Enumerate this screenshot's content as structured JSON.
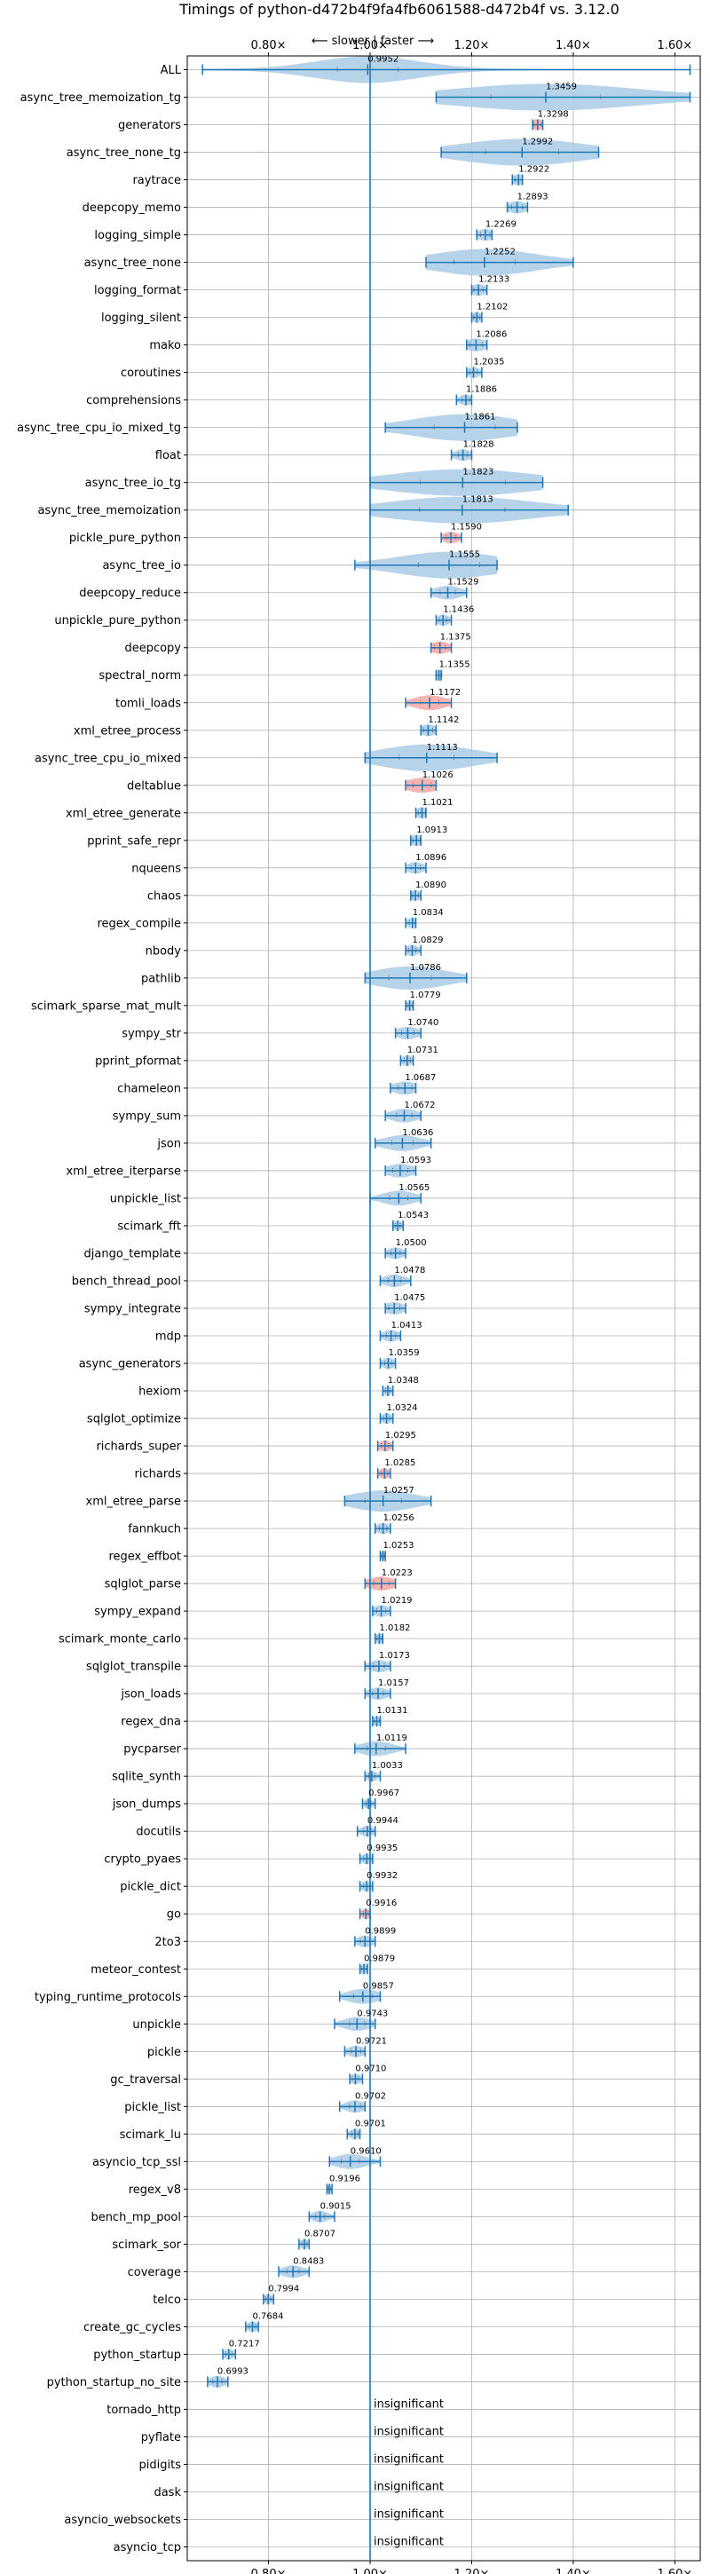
{
  "chart_data": {
    "type": "violin",
    "title": "Timings of python-d472b4f9fa4fb6061588-d472b4f vs. 3.12.0",
    "direction_note": "⟵ slower | faster ⟶",
    "xlim": [
      0.64,
      1.65
    ],
    "reference_x": 1.0,
    "x_ticks": [
      "0.80×",
      "1.00×",
      "1.20×",
      "1.40×",
      "1.60×"
    ],
    "x_tick_values": [
      0.8,
      1.0,
      1.2,
      1.4,
      1.6
    ],
    "grid": true,
    "insignificant_text": "insignificant",
    "colors": {
      "violin": "#a9cbe6",
      "violin_highlight": "#f4a6a6",
      "line": "#1f77b4",
      "grid": "#b0b0b0"
    },
    "categories": [
      {
        "name": "ALL",
        "value": 0.9952,
        "label": "0.9952",
        "lo": 0.67,
        "hi": 1.63,
        "spread": 0.1,
        "flag": false
      },
      {
        "name": "async_tree_memoization_tg",
        "value": 1.3459,
        "label": "1.3459",
        "lo": 1.13,
        "hi": 1.63,
        "spread": 0.18,
        "flag": false
      },
      {
        "name": "generators",
        "value": 1.3298,
        "label": "1.3298",
        "lo": 1.32,
        "hi": 1.34,
        "spread": 0.012,
        "flag": true
      },
      {
        "name": "async_tree_none_tg",
        "value": 1.2992,
        "label": "1.2992",
        "lo": 1.14,
        "hi": 1.45,
        "spread": 0.12,
        "flag": false
      },
      {
        "name": "raytrace",
        "value": 1.2922,
        "label": "1.2922",
        "lo": 1.28,
        "hi": 1.3,
        "spread": 0.012,
        "flag": false
      },
      {
        "name": "deepcopy_memo",
        "value": 1.2893,
        "label": "1.2893",
        "lo": 1.27,
        "hi": 1.31,
        "spread": 0.018,
        "flag": false
      },
      {
        "name": "logging_simple",
        "value": 1.2269,
        "label": "1.2269",
        "lo": 1.21,
        "hi": 1.24,
        "spread": 0.015,
        "flag": false
      },
      {
        "name": "async_tree_none",
        "value": 1.2252,
        "label": "1.2252",
        "lo": 1.11,
        "hi": 1.4,
        "spread": 0.1,
        "flag": false
      },
      {
        "name": "logging_format",
        "value": 1.2133,
        "label": "1.2133",
        "lo": 1.2,
        "hi": 1.23,
        "spread": 0.015,
        "flag": false
      },
      {
        "name": "logging_silent",
        "value": 1.2102,
        "label": "1.2102",
        "lo": 1.2,
        "hi": 1.22,
        "spread": 0.01,
        "flag": false
      },
      {
        "name": "mako",
        "value": 1.2086,
        "label": "1.2086",
        "lo": 1.19,
        "hi": 1.23,
        "spread": 0.02,
        "flag": false
      },
      {
        "name": "coroutines",
        "value": 1.2035,
        "label": "1.2035",
        "lo": 1.19,
        "hi": 1.22,
        "spread": 0.012,
        "flag": false
      },
      {
        "name": "comprehensions",
        "value": 1.1886,
        "label": "1.1886",
        "lo": 1.17,
        "hi": 1.2,
        "spread": 0.012,
        "flag": false
      },
      {
        "name": "async_tree_cpu_io_mixed_tg",
        "value": 1.1861,
        "label": "1.1861",
        "lo": 1.03,
        "hi": 1.29,
        "spread": 0.1,
        "flag": false
      },
      {
        "name": "float",
        "value": 1.1828,
        "label": "1.1828",
        "lo": 1.16,
        "hi": 1.2,
        "spread": 0.015,
        "flag": false
      },
      {
        "name": "async_tree_io_tg",
        "value": 1.1823,
        "label": "1.1823",
        "lo": 1.0,
        "hi": 1.34,
        "spread": 0.14,
        "flag": false
      },
      {
        "name": "async_tree_memoization",
        "value": 1.1813,
        "label": "1.1813",
        "lo": 1.0,
        "hi": 1.39,
        "spread": 0.14,
        "flag": false
      },
      {
        "name": "pickle_pure_python",
        "value": 1.159,
        "label": "1.1590",
        "lo": 1.14,
        "hi": 1.18,
        "spread": 0.015,
        "flag": true
      },
      {
        "name": "async_tree_io",
        "value": 1.1555,
        "label": "1.1555",
        "lo": 0.97,
        "hi": 1.25,
        "spread": 0.1,
        "flag": false
      },
      {
        "name": "deepcopy_reduce",
        "value": 1.1529,
        "label": "1.1529",
        "lo": 1.12,
        "hi": 1.19,
        "spread": 0.025,
        "flag": false
      },
      {
        "name": "unpickle_pure_python",
        "value": 1.1436,
        "label": "1.1436",
        "lo": 1.13,
        "hi": 1.16,
        "spread": 0.012,
        "flag": false
      },
      {
        "name": "deepcopy",
        "value": 1.1375,
        "label": "1.1375",
        "lo": 1.12,
        "hi": 1.16,
        "spread": 0.018,
        "flag": true
      },
      {
        "name": "spectral_norm",
        "value": 1.1355,
        "label": "1.1355",
        "lo": 1.13,
        "hi": 1.14,
        "spread": 0.01,
        "flag": false
      },
      {
        "name": "tomli_loads",
        "value": 1.1172,
        "label": "1.1172",
        "lo": 1.07,
        "hi": 1.16,
        "spread": 0.03,
        "flag": true
      },
      {
        "name": "xml_etree_process",
        "value": 1.1142,
        "label": "1.1142",
        "lo": 1.1,
        "hi": 1.13,
        "spread": 0.015,
        "flag": false
      },
      {
        "name": "async_tree_cpu_io_mixed",
        "value": 1.1113,
        "label": "1.1113",
        "lo": 0.99,
        "hi": 1.25,
        "spread": 0.09,
        "flag": false
      },
      {
        "name": "deltablue",
        "value": 1.1026,
        "label": "1.1026",
        "lo": 1.07,
        "hi": 1.13,
        "spread": 0.03,
        "flag": true
      },
      {
        "name": "xml_etree_generate",
        "value": 1.1021,
        "label": "1.1021",
        "lo": 1.09,
        "hi": 1.11,
        "spread": 0.012,
        "flag": false
      },
      {
        "name": "pprint_safe_repr",
        "value": 1.0913,
        "label": "1.0913",
        "lo": 1.08,
        "hi": 1.1,
        "spread": 0.012,
        "flag": false
      },
      {
        "name": "nqueens",
        "value": 1.0896,
        "label": "1.0896",
        "lo": 1.07,
        "hi": 1.11,
        "spread": 0.015,
        "flag": false
      },
      {
        "name": "chaos",
        "value": 1.089,
        "label": "1.0890",
        "lo": 1.08,
        "hi": 1.1,
        "spread": 0.01,
        "flag": false
      },
      {
        "name": "regex_compile",
        "value": 1.0834,
        "label": "1.0834",
        "lo": 1.07,
        "hi": 1.09,
        "spread": 0.01,
        "flag": false
      },
      {
        "name": "nbody",
        "value": 1.0829,
        "label": "1.0829",
        "lo": 1.07,
        "hi": 1.1,
        "spread": 0.012,
        "flag": false
      },
      {
        "name": "pathlib",
        "value": 1.0786,
        "label": "1.0786",
        "lo": 0.99,
        "hi": 1.19,
        "spread": 0.07,
        "flag": false
      },
      {
        "name": "scimark_sparse_mat_mult",
        "value": 1.0779,
        "label": "1.0779",
        "lo": 1.07,
        "hi": 1.085,
        "spread": 0.008,
        "flag": false
      },
      {
        "name": "sympy_str",
        "value": 1.074,
        "label": "1.0740",
        "lo": 1.05,
        "hi": 1.1,
        "spread": 0.02,
        "flag": false
      },
      {
        "name": "pprint_pformat",
        "value": 1.0731,
        "label": "1.0731",
        "lo": 1.06,
        "hi": 1.085,
        "spread": 0.01,
        "flag": false
      },
      {
        "name": "chameleon",
        "value": 1.0687,
        "label": "1.0687",
        "lo": 1.04,
        "hi": 1.09,
        "spread": 0.022,
        "flag": false
      },
      {
        "name": "sympy_sum",
        "value": 1.0672,
        "label": "1.0672",
        "lo": 1.03,
        "hi": 1.1,
        "spread": 0.025,
        "flag": false
      },
      {
        "name": "json",
        "value": 1.0636,
        "label": "1.0636",
        "lo": 1.01,
        "hi": 1.12,
        "spread": 0.035,
        "flag": false
      },
      {
        "name": "xml_etree_iterparse",
        "value": 1.0593,
        "label": "1.0593",
        "lo": 1.03,
        "hi": 1.09,
        "spread": 0.025,
        "flag": false
      },
      {
        "name": "unpickle_list",
        "value": 1.0565,
        "label": "1.0565",
        "lo": 1.0,
        "hi": 1.1,
        "spread": 0.03,
        "flag": false
      },
      {
        "name": "scimark_fft",
        "value": 1.0543,
        "label": "1.0543",
        "lo": 1.045,
        "hi": 1.065,
        "spread": 0.008,
        "flag": false
      },
      {
        "name": "django_template",
        "value": 1.05,
        "label": "1.0500",
        "lo": 1.03,
        "hi": 1.07,
        "spread": 0.015,
        "flag": false
      },
      {
        "name": "bench_thread_pool",
        "value": 1.0478,
        "label": "1.0478",
        "lo": 1.02,
        "hi": 1.08,
        "spread": 0.02,
        "flag": false
      },
      {
        "name": "sympy_integrate",
        "value": 1.0475,
        "label": "1.0475",
        "lo": 1.03,
        "hi": 1.07,
        "spread": 0.018,
        "flag": false
      },
      {
        "name": "mdp",
        "value": 1.0413,
        "label": "1.0413",
        "lo": 1.02,
        "hi": 1.06,
        "spread": 0.015,
        "flag": false
      },
      {
        "name": "async_generators",
        "value": 1.0359,
        "label": "1.0359",
        "lo": 1.02,
        "hi": 1.05,
        "spread": 0.012,
        "flag": false
      },
      {
        "name": "hexiom",
        "value": 1.0348,
        "label": "1.0348",
        "lo": 1.025,
        "hi": 1.045,
        "spread": 0.008,
        "flag": false
      },
      {
        "name": "sqlglot_optimize",
        "value": 1.0324,
        "label": "1.0324",
        "lo": 1.02,
        "hi": 1.045,
        "spread": 0.01,
        "flag": false
      },
      {
        "name": "richards_super",
        "value": 1.0295,
        "label": "1.0295",
        "lo": 1.015,
        "hi": 1.045,
        "spread": 0.012,
        "flag": true
      },
      {
        "name": "richards",
        "value": 1.0285,
        "label": "1.0285",
        "lo": 1.015,
        "hi": 1.04,
        "spread": 0.01,
        "flag": true
      },
      {
        "name": "xml_etree_parse",
        "value": 1.0257,
        "label": "1.0257",
        "lo": 0.95,
        "hi": 1.12,
        "spread": 0.06,
        "flag": false
      },
      {
        "name": "fannkuch",
        "value": 1.0256,
        "label": "1.0256",
        "lo": 1.01,
        "hi": 1.04,
        "spread": 0.012,
        "flag": false
      },
      {
        "name": "regex_effbot",
        "value": 1.0253,
        "label": "1.0253",
        "lo": 1.02,
        "hi": 1.03,
        "spread": 0.005,
        "flag": false
      },
      {
        "name": "sqlglot_parse",
        "value": 1.0223,
        "label": "1.0223",
        "lo": 0.99,
        "hi": 1.05,
        "spread": 0.025,
        "flag": true
      },
      {
        "name": "sympy_expand",
        "value": 1.0219,
        "label": "1.0219",
        "lo": 1.005,
        "hi": 1.04,
        "spread": 0.015,
        "flag": false
      },
      {
        "name": "scimark_monte_carlo",
        "value": 1.0182,
        "label": "1.0182",
        "lo": 1.01,
        "hi": 1.025,
        "spread": 0.008,
        "flag": false
      },
      {
        "name": "sqlglot_transpile",
        "value": 1.0173,
        "label": "1.0173",
        "lo": 0.99,
        "hi": 1.04,
        "spread": 0.018,
        "flag": false
      },
      {
        "name": "json_loads",
        "value": 1.0157,
        "label": "1.0157",
        "lo": 0.99,
        "hi": 1.04,
        "spread": 0.018,
        "flag": false
      },
      {
        "name": "regex_dna",
        "value": 1.0131,
        "label": "1.0131",
        "lo": 1.005,
        "hi": 1.02,
        "spread": 0.008,
        "flag": false
      },
      {
        "name": "pycparser",
        "value": 1.0119,
        "label": "1.0119",
        "lo": 0.97,
        "hi": 1.07,
        "spread": 0.03,
        "flag": false
      },
      {
        "name": "sqlite_synth",
        "value": 1.0033,
        "label": "1.0033",
        "lo": 0.99,
        "hi": 1.02,
        "spread": 0.01,
        "flag": false
      },
      {
        "name": "json_dumps",
        "value": 0.9967,
        "label": "0.9967",
        "lo": 0.985,
        "hi": 1.01,
        "spread": 0.008,
        "flag": false
      },
      {
        "name": "docutils",
        "value": 0.9944,
        "label": "0.9944",
        "lo": 0.975,
        "hi": 1.01,
        "spread": 0.012,
        "flag": false
      },
      {
        "name": "crypto_pyaes",
        "value": 0.9935,
        "label": "0.9935",
        "lo": 0.98,
        "hi": 1.005,
        "spread": 0.01,
        "flag": false
      },
      {
        "name": "pickle_dict",
        "value": 0.9932,
        "label": "0.9932",
        "lo": 0.98,
        "hi": 1.005,
        "spread": 0.01,
        "flag": false
      },
      {
        "name": "go",
        "value": 0.9916,
        "label": "0.9916",
        "lo": 0.98,
        "hi": 1.0,
        "spread": 0.008,
        "flag": true
      },
      {
        "name": "2to3",
        "value": 0.9899,
        "label": "0.9899",
        "lo": 0.97,
        "hi": 1.01,
        "spread": 0.015,
        "flag": false
      },
      {
        "name": "meteor_contest",
        "value": 0.9879,
        "label": "0.9879",
        "lo": 0.98,
        "hi": 0.995,
        "spread": 0.008,
        "flag": false
      },
      {
        "name": "typing_runtime_protocols",
        "value": 0.9857,
        "label": "0.9857",
        "lo": 0.94,
        "hi": 1.02,
        "spread": 0.03,
        "flag": false
      },
      {
        "name": "unpickle",
        "value": 0.9743,
        "label": "0.9743",
        "lo": 0.93,
        "hi": 1.01,
        "spread": 0.025,
        "flag": false
      },
      {
        "name": "pickle",
        "value": 0.9721,
        "label": "0.9721",
        "lo": 0.95,
        "hi": 0.99,
        "spread": 0.015,
        "flag": false
      },
      {
        "name": "gc_traversal",
        "value": 0.971,
        "label": "0.9710",
        "lo": 0.96,
        "hi": 0.985,
        "spread": 0.01,
        "flag": false
      },
      {
        "name": "pickle_list",
        "value": 0.9702,
        "label": "0.9702",
        "lo": 0.94,
        "hi": 0.99,
        "spread": 0.018,
        "flag": false
      },
      {
        "name": "scimark_lu",
        "value": 0.9701,
        "label": "0.9701",
        "lo": 0.955,
        "hi": 0.98,
        "spread": 0.01,
        "flag": false
      },
      {
        "name": "asyncio_tcp_ssl",
        "value": 0.961,
        "label": "0.9610",
        "lo": 0.92,
        "hi": 1.02,
        "spread": 0.03,
        "flag": false
      },
      {
        "name": "regex_v8",
        "value": 0.9196,
        "label": "0.9196",
        "lo": 0.915,
        "hi": 0.925,
        "spread": 0.005,
        "flag": false
      },
      {
        "name": "bench_mp_pool",
        "value": 0.9015,
        "label": "0.9015",
        "lo": 0.88,
        "hi": 0.93,
        "spread": 0.015,
        "flag": false
      },
      {
        "name": "scimark_sor",
        "value": 0.8707,
        "label": "0.8707",
        "lo": 0.86,
        "hi": 0.88,
        "spread": 0.008,
        "flag": false
      },
      {
        "name": "coverage",
        "value": 0.8483,
        "label": "0.8483",
        "lo": 0.82,
        "hi": 0.88,
        "spread": 0.02,
        "flag": false
      },
      {
        "name": "telco",
        "value": 0.7994,
        "label": "0.7994",
        "lo": 0.79,
        "hi": 0.81,
        "spread": 0.008,
        "flag": false
      },
      {
        "name": "create_gc_cycles",
        "value": 0.7684,
        "label": "0.7684",
        "lo": 0.755,
        "hi": 0.78,
        "spread": 0.01,
        "flag": false
      },
      {
        "name": "python_startup",
        "value": 0.7217,
        "label": "0.7217",
        "lo": 0.71,
        "hi": 0.735,
        "spread": 0.01,
        "flag": false
      },
      {
        "name": "python_startup_no_site",
        "value": 0.6993,
        "label": "0.6993",
        "lo": 0.68,
        "hi": 0.72,
        "spread": 0.015,
        "flag": false
      },
      {
        "name": "tornado_http",
        "value": null,
        "label": "",
        "lo": null,
        "hi": null,
        "spread": null,
        "flag": false
      },
      {
        "name": "pyflate",
        "value": null,
        "label": "",
        "lo": null,
        "hi": null,
        "spread": null,
        "flag": false
      },
      {
        "name": "pidigits",
        "value": null,
        "label": "",
        "lo": null,
        "hi": null,
        "spread": null,
        "flag": false
      },
      {
        "name": "dask",
        "value": null,
        "label": "",
        "lo": null,
        "hi": null,
        "spread": null,
        "flag": false
      },
      {
        "name": "asyncio_websockets",
        "value": null,
        "label": "",
        "lo": null,
        "hi": null,
        "spread": null,
        "flag": false
      },
      {
        "name": "asyncio_tcp",
        "value": null,
        "label": "",
        "lo": null,
        "hi": null,
        "spread": null,
        "flag": false
      }
    ]
  }
}
